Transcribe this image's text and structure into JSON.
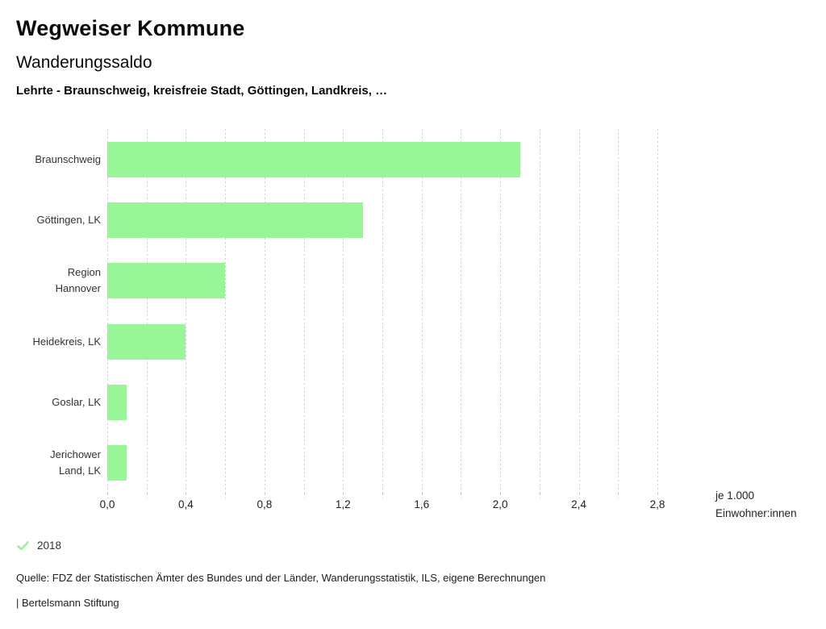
{
  "header": {
    "title": "Wegweiser Kommune",
    "subtitle": "Wanderungssaldo",
    "selection": "Lehrte - Braunschweig, kreisfreie Stadt, Göttingen, Landkreis, …"
  },
  "chart_data": {
    "type": "bar",
    "orientation": "horizontal",
    "title": "Wanderungssaldo",
    "categories": [
      "Braunschweig",
      "Göttingen, LK",
      "Region Hannover",
      "Heidekreis, LK",
      "Goslar, LK",
      "Jerichower Land, LK"
    ],
    "category_label_lines": [
      [
        "Braunschweig"
      ],
      [
        "Göttingen, LK"
      ],
      [
        "Region",
        "Hannover"
      ],
      [
        "Heidekreis, LK"
      ],
      [
        "Goslar, LK"
      ],
      [
        "Jerichower",
        "Land, LK"
      ]
    ],
    "series": [
      {
        "name": "2018",
        "values": [
          2.1,
          1.3,
          0.6,
          0.4,
          0.1,
          0.1
        ]
      }
    ],
    "xlabel": "je 1.000 Einwohner:innen",
    "ylabel": "",
    "xlim": [
      0,
      2.8
    ],
    "x_major_ticks": [
      0.0,
      0.4,
      0.8,
      1.2,
      1.6,
      2.0,
      2.4,
      2.8
    ],
    "x_major_tick_labels": [
      "0,0",
      "0,4",
      "0,8",
      "1,2",
      "1,6",
      "2,0",
      "2,4",
      "2,8"
    ],
    "x_minor_step": 0.2,
    "grid": "vertical-dashed",
    "legend_position": "bottom-left",
    "bar_color": "#98f598"
  },
  "axis_unit": {
    "line1": "je 1.000",
    "line2": "Einwohner:innen"
  },
  "legend": {
    "icon": "check-icon",
    "label": "2018",
    "check_color": "#9aef9a"
  },
  "footer": {
    "source": "Quelle: FDZ der Statistischen Ämter des Bundes und der Länder, Wanderungsstatistik, ILS, eigene Berechnungen",
    "attribution": "| Bertelsmann Stiftung"
  },
  "colors": {
    "bar": "#98f598",
    "grid": "#cbcbcb",
    "text": "#111111"
  }
}
